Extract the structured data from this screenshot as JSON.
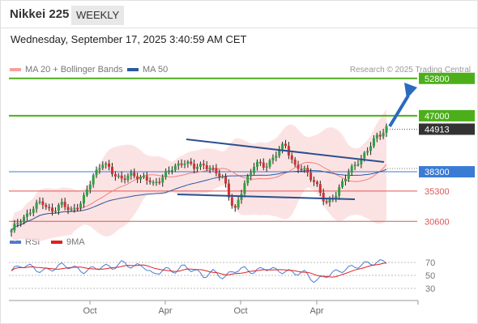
{
  "header": {
    "title": "Nikkei 225",
    "timeframe": "WEEKLY",
    "datetime": "Wednesday, September 17, 2025 3:40:59 AM CET"
  },
  "legend": {
    "ma20": "MA 20 + Bollinger Bands",
    "ma50": "MA 50",
    "rsi": "RSI",
    "ma9": "9MA"
  },
  "source": "Research © 2025 Trading Central",
  "colors": {
    "resistance": "#4caf1a",
    "pivot": "#3a7bd5",
    "support": "#e05555",
    "last": "#333333",
    "ma20": "#f08080",
    "ma50": "#2c5aa0",
    "arrow": "#2a6ac0",
    "up": "#2ea043",
    "down": "#d03030"
  },
  "chart_data": {
    "type": "candlestick",
    "price_levels": [
      {
        "label": "52800",
        "value": 52800,
        "kind": "resistance"
      },
      {
        "label": "47000",
        "value": 47000,
        "kind": "resistance"
      },
      {
        "label": "44913",
        "value": 44913,
        "kind": "last"
      },
      {
        "label": "38300",
        "value": 38300,
        "kind": "pivot"
      },
      {
        "label": "35300",
        "value": 35300,
        "kind": "support"
      },
      {
        "label": "30600",
        "value": 30600,
        "kind": "support"
      }
    ],
    "x_ticks": [
      "Oct",
      "Apr",
      "Oct",
      "Apr"
    ],
    "rsi_ticks": [
      "70",
      "50",
      "30"
    ],
    "price_path": [
      29200,
      30800,
      32600,
      33500,
      32300,
      33100,
      32500,
      33400,
      37800,
      39500,
      38300,
      37000,
      37900,
      37400,
      36300,
      37800,
      38800,
      40100,
      38800,
      39600,
      38200,
      37300,
      31800,
      36600,
      39500,
      39100,
      40900,
      42500,
      39200,
      38300,
      36800,
      33000,
      35000,
      37400,
      39800,
      41100,
      43900,
      45000
    ],
    "rsi_path": [
      57,
      66,
      63,
      56,
      60,
      66,
      63,
      56,
      60,
      64,
      62,
      70,
      63,
      66,
      50,
      60,
      56,
      64,
      58,
      49,
      56,
      46,
      58,
      60,
      55,
      62,
      58,
      56,
      54,
      54,
      40,
      50,
      55,
      60,
      64,
      68,
      70,
      71
    ],
    "y_range": [
      29000,
      53400
    ]
  }
}
